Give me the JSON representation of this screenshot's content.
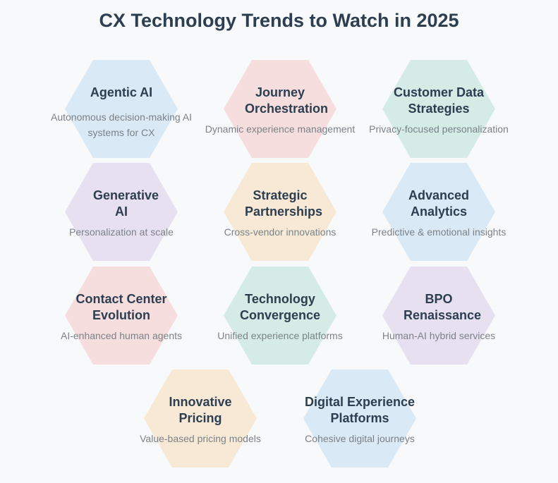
{
  "title": "CX Technology Trends to Watch in 2025",
  "colors": {
    "blue": "#d9e9f5",
    "pink": "#f5dedd",
    "green": "#d5ebe6",
    "purple": "#e6e0f0",
    "peach": "#f7e9d6",
    "heading": "#2c3e50",
    "text_muted": "#7b8288",
    "background": "#f8f9fb"
  },
  "trends": [
    {
      "title": "Agentic AI",
      "description": "Autonomous decision-making AI systems for CX",
      "color": "blue"
    },
    {
      "title": "Journey Orchestration",
      "description": "Dynamic experience management",
      "color": "pink"
    },
    {
      "title": "Customer Data Strategies",
      "description": "Privacy-focused personalization",
      "color": "green"
    },
    {
      "title": "Generative AI",
      "description": "Personalization at scale",
      "color": "purple"
    },
    {
      "title": "Strategic Partnerships",
      "description": "Cross-vendor innovations",
      "color": "peach"
    },
    {
      "title": "Advanced Analytics",
      "description": "Predictive & emotional insights",
      "color": "blue"
    },
    {
      "title": "Contact Center Evolution",
      "description": "AI-enhanced human agents",
      "color": "pink"
    },
    {
      "title": "Technology Convergence",
      "description": "Unified experience platforms",
      "color": "green"
    },
    {
      "title": "BPO Renaissance",
      "description": "Human-AI hybrid services",
      "color": "purple"
    },
    {
      "title": "Innovative Pricing",
      "description": "Value-based pricing models",
      "color": "peach"
    },
    {
      "title": "Digital Experience Platforms",
      "description": "Cohesive digital journeys",
      "color": "blue"
    }
  ]
}
